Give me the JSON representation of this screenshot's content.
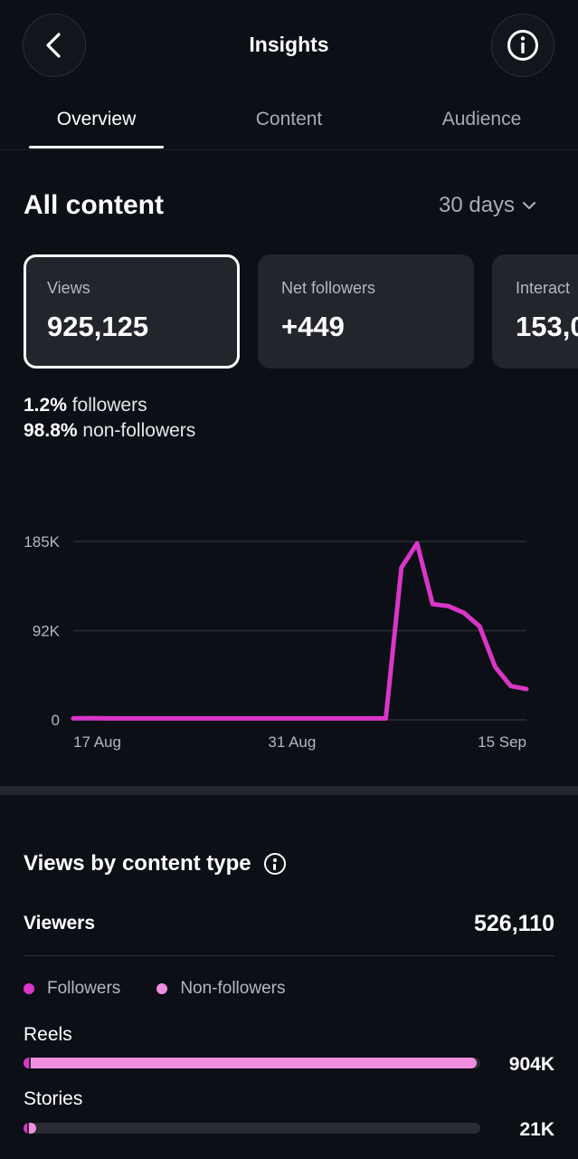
{
  "header": {
    "title": "Insights",
    "back_icon": "chevron-left-icon",
    "info_icon": "info-icon"
  },
  "tabs": [
    {
      "label": "Overview",
      "active": true
    },
    {
      "label": "Content",
      "active": false
    },
    {
      "label": "Audience",
      "active": false
    }
  ],
  "all_content": {
    "title": "All content",
    "range": "30 days"
  },
  "cards": [
    {
      "label": "Views",
      "value": "925,125",
      "selected": true
    },
    {
      "label": "Net followers",
      "value": "+449",
      "selected": false
    },
    {
      "label": "Interact",
      "value": "153,0",
      "selected": false
    }
  ],
  "audience_split": {
    "followers_pct": "1.2%",
    "followers_label": "followers",
    "nonfollowers_pct": "98.8%",
    "nonfollowers_label": "non-followers"
  },
  "chart_data": {
    "type": "line",
    "x": [
      "17 Aug",
      "18 Aug",
      "19 Aug",
      "20 Aug",
      "21 Aug",
      "22 Aug",
      "23 Aug",
      "24 Aug",
      "25 Aug",
      "26 Aug",
      "27 Aug",
      "28 Aug",
      "29 Aug",
      "30 Aug",
      "31 Aug",
      "1 Sep",
      "2 Sep",
      "3 Sep",
      "4 Sep",
      "5 Sep",
      "6 Sep",
      "7 Sep",
      "8 Sep",
      "9 Sep",
      "10 Sep",
      "11 Sep",
      "12 Sep",
      "13 Sep",
      "14 Sep",
      "15 Sep"
    ],
    "series": [
      {
        "values": [
          1500,
          1800,
          1500,
          1500,
          1500,
          1500,
          1500,
          1500,
          1500,
          1500,
          1500,
          1500,
          1500,
          1500,
          1500,
          1500,
          1500,
          1500,
          1500,
          1500,
          1500,
          158000,
          183000,
          120000,
          118000,
          111000,
          97000,
          55000,
          35000,
          32000
        ]
      }
    ],
    "y_ticks": [
      "0",
      "92K",
      "185K"
    ],
    "x_ticks": [
      "17 Aug",
      "31 Aug",
      "15 Sep"
    ],
    "ylim": [
      0,
      185000
    ],
    "grid": true,
    "color": "#d936c7"
  },
  "views_by_type": {
    "title": "Views by content type",
    "info_icon": "info-icon",
    "viewers_label": "Viewers",
    "viewers_value": "526,110",
    "legend": [
      {
        "label": "Followers",
        "color": "#d936c7"
      },
      {
        "label": "Non-followers",
        "color": "#f08ee0"
      }
    ],
    "rows": [
      {
        "label": "Reels",
        "value": "904K",
        "followers_fraction": 0.012,
        "nonfollowers_fraction": 0.976
      },
      {
        "label": "Stories",
        "value": "21K",
        "followers_fraction": 0.008,
        "nonfollowers_fraction": 0.015
      }
    ]
  }
}
